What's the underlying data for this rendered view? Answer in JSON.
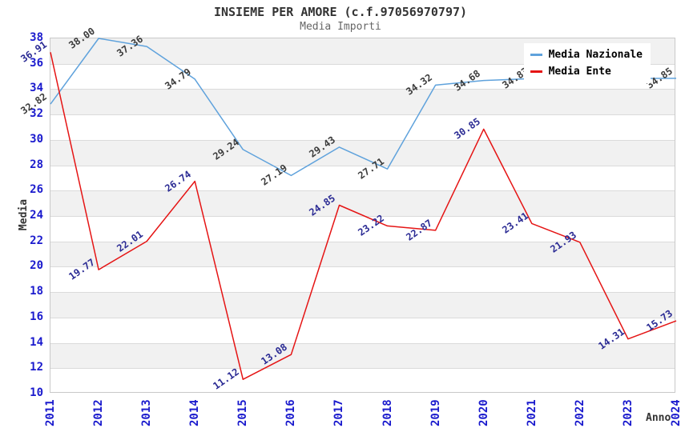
{
  "chart_data": {
    "type": "line",
    "title": "INSIEME PER AMORE (c.f.97056970797)",
    "subtitle": "Media Importi",
    "xlabel": "Anno",
    "ylabel": "Media",
    "categories": [
      "2011",
      "2012",
      "2013",
      "2014",
      "2015",
      "2016",
      "2017",
      "2018",
      "2019",
      "2020",
      "2021",
      "2022",
      "2023",
      "2024"
    ],
    "ylim": [
      10,
      38
    ],
    "ytick_step": 2,
    "grid": "horizontal gridlines with alternating shaded bands",
    "legend_position": "top-right",
    "series": [
      {
        "name": "Media Nazionale",
        "color": "#5fa2dc",
        "label_color": "#3c3c3c",
        "values": [
          32.82,
          38.0,
          37.36,
          34.79,
          29.24,
          27.19,
          29.43,
          27.71,
          34.32,
          34.68,
          34.83,
          34.84,
          34.84,
          34.85
        ],
        "labels": [
          "32.82",
          "38.00",
          "37.36",
          "34.79",
          "29.24",
          "27.19",
          "29.43",
          "27.71",
          "34.32",
          "34.68",
          "34.83",
          "",
          "",
          "34.85"
        ]
      },
      {
        "name": "Media Ente",
        "color": "#e51414",
        "label_color": "#2b2b94",
        "values": [
          36.91,
          19.77,
          22.01,
          26.74,
          11.12,
          13.08,
          24.85,
          23.22,
          22.87,
          30.85,
          23.41,
          21.93,
          14.31,
          15.73
        ],
        "labels": [
          "36.91",
          "19.77",
          "22.01",
          "26.74",
          "11.12",
          "13.08",
          "24.85",
          "23.22",
          "22.87",
          "30.85",
          "23.41",
          "21.93",
          "14.31",
          "15.73"
        ]
      }
    ],
    "colors": {
      "tick_label": "#1a1acd",
      "axis_title": "#333333",
      "title": "#333333",
      "subtitle": "#666666",
      "band": "#f1f1f1",
      "gridline": "#dbdbdb",
      "plot_border": "#c9c9c9",
      "legend_bg": "#ffffff",
      "legend_text": "#000000"
    }
  }
}
